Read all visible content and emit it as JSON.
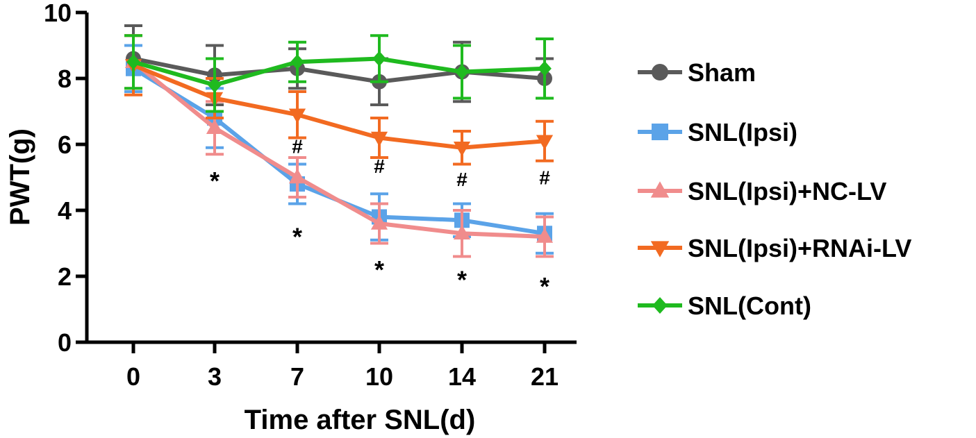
{
  "chart_data": {
    "type": "line",
    "title": "",
    "xlabel": "Time after SNL(d)",
    "ylabel": "PWT(g)",
    "categories": [
      "0",
      "3",
      "7",
      "10",
      "14",
      "21"
    ],
    "ylim": [
      0,
      10
    ],
    "yticks": [
      "0",
      "2",
      "4",
      "6",
      "8",
      "10"
    ],
    "grid": false,
    "legend_position": "right",
    "series": [
      {
        "name": "Sham",
        "color": "#5a5a5a",
        "marker": "circle",
        "values": [
          8.6,
          8.1,
          8.3,
          7.9,
          8.2,
          8.0
        ],
        "errors": [
          1.0,
          0.9,
          0.6,
          0.7,
          0.9,
          0.6
        ]
      },
      {
        "name": "SNL(Ipsi)",
        "color": "#5ba3e8",
        "marker": "square",
        "values": [
          8.3,
          6.8,
          4.8,
          3.8,
          3.7,
          3.3
        ],
        "errors": [
          0.7,
          0.9,
          0.6,
          0.7,
          0.5,
          0.6
        ]
      },
      {
        "name": "SNL(Ipsi)+NC-LV",
        "color": "#f08c8c",
        "marker": "triangle-up",
        "values": [
          8.5,
          6.5,
          5.0,
          3.6,
          3.3,
          3.2
        ],
        "errors": [
          0.8,
          0.8,
          0.6,
          0.6,
          0.7,
          0.6
        ]
      },
      {
        "name": "SNL(Ipsi)+RNAi-LV",
        "color": "#f26a21",
        "marker": "triangle-down",
        "values": [
          8.4,
          7.4,
          6.9,
          6.2,
          5.9,
          6.1
        ],
        "errors": [
          0.9,
          0.6,
          0.7,
          0.6,
          0.5,
          0.6
        ]
      },
      {
        "name": "SNL(Cont)",
        "color": "#1fba1f",
        "marker": "diamond",
        "values": [
          8.5,
          7.8,
          8.5,
          8.6,
          8.2,
          8.3
        ],
        "errors": [
          0.8,
          0.8,
          0.6,
          0.7,
          0.8,
          0.9
        ]
      }
    ],
    "annotations": [
      {
        "text": "*",
        "category": "3",
        "value": 5.1
      },
      {
        "text": "*",
        "category": "7",
        "value": 3.4
      },
      {
        "text": "*",
        "category": "10",
        "value": 2.4
      },
      {
        "text": "*",
        "category": "14",
        "value": 2.1
      },
      {
        "text": "*",
        "category": "21",
        "value": 1.9
      },
      {
        "text": "#",
        "category": "7",
        "value": 5.95
      },
      {
        "text": "#",
        "category": "10",
        "value": 5.35
      },
      {
        "text": "#",
        "category": "14",
        "value": 4.95
      },
      {
        "text": "#",
        "category": "21",
        "value": 5.0
      }
    ]
  }
}
